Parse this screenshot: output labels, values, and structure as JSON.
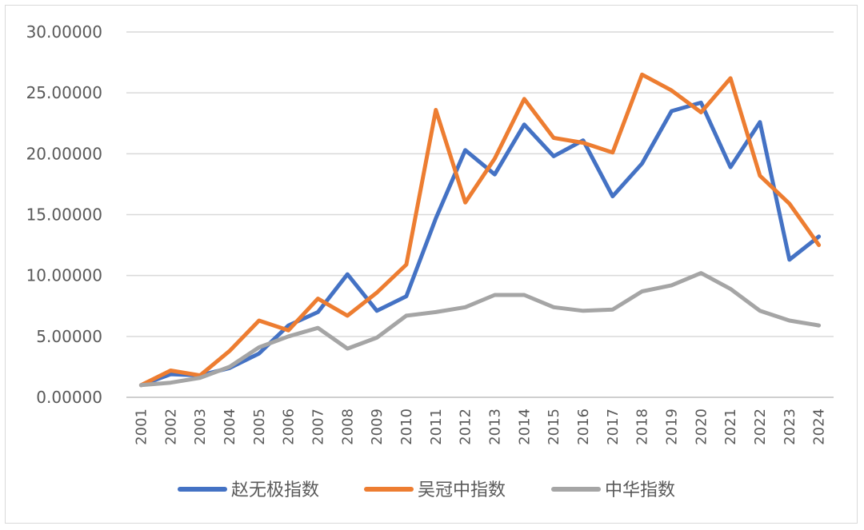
{
  "chart_data": {
    "type": "line",
    "title": "",
    "xlabel": "",
    "ylabel": "",
    "ylim": [
      0,
      30
    ],
    "y_ticks": [
      "0.00000",
      "5.00000",
      "10.00000",
      "15.00000",
      "20.00000",
      "25.00000",
      "30.00000"
    ],
    "y_tick_values": [
      0,
      5,
      10,
      15,
      20,
      25,
      30
    ],
    "categories": [
      "2001",
      "2002",
      "2003",
      "2004",
      "2005",
      "2006",
      "2007",
      "2008",
      "2009",
      "2010",
      "2011",
      "2012",
      "2013",
      "2014",
      "2015",
      "2016",
      "2017",
      "2018",
      "2019",
      "2020",
      "2021",
      "2022",
      "2023",
      "2024"
    ],
    "grid": true,
    "legend_position": "bottom",
    "series": [
      {
        "name": "赵无极指数",
        "color": "#4472C4",
        "values": [
          1.0,
          1.9,
          1.8,
          2.4,
          3.6,
          5.9,
          7.0,
          10.1,
          7.1,
          8.3,
          14.7,
          20.3,
          18.3,
          22.4,
          19.8,
          21.1,
          16.5,
          19.2,
          23.5,
          24.2,
          18.9,
          22.6,
          11.3,
          13.2
        ]
      },
      {
        "name": "吴冠中指数",
        "color": "#ED7D31",
        "values": [
          1.0,
          2.2,
          1.8,
          3.8,
          6.3,
          5.5,
          8.1,
          6.7,
          8.6,
          10.9,
          23.6,
          16.0,
          19.6,
          24.5,
          21.3,
          20.9,
          20.1,
          26.5,
          25.2,
          23.4,
          26.2,
          18.2,
          15.9,
          12.5
        ]
      },
      {
        "name": "中华指数",
        "color": "#A5A5A5",
        "values": [
          1.0,
          1.2,
          1.6,
          2.5,
          4.1,
          5.0,
          5.7,
          4.0,
          4.9,
          6.7,
          7.0,
          7.4,
          8.4,
          8.4,
          7.4,
          7.1,
          7.2,
          8.7,
          9.2,
          10.2,
          8.9,
          7.1,
          6.3,
          5.9
        ]
      }
    ]
  }
}
